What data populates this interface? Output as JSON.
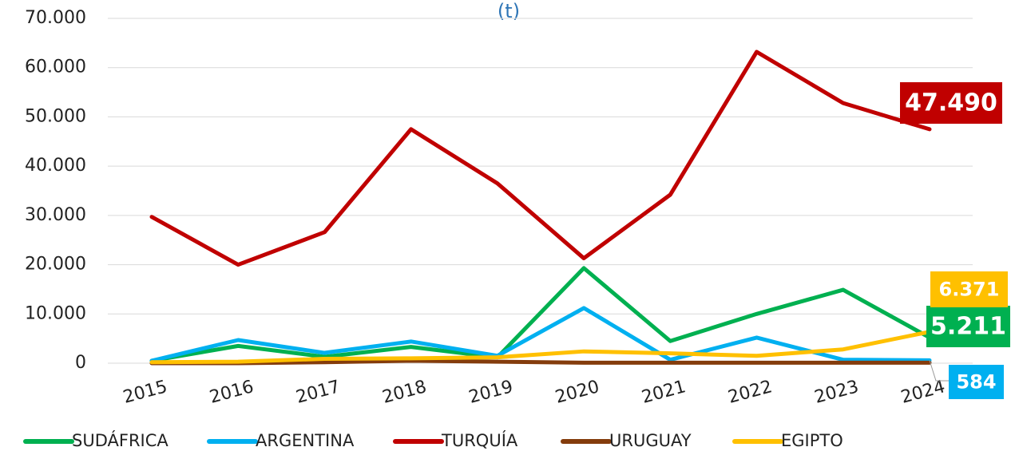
{
  "chart_data": {
    "type": "line",
    "title": "(t)",
    "categories": [
      "2015",
      "2016",
      "2017",
      "2018",
      "2019",
      "2020",
      "2021",
      "2022",
      "2023",
      "2024"
    ],
    "series": [
      {
        "name": "SUDÁFRICA",
        "color": "#00b050",
        "values": [
          500,
          3500,
          1300,
          3300,
          1200,
          19300,
          4500,
          10000,
          14900,
          5211
        ],
        "value_labels": [
          null,
          null,
          null,
          null,
          null,
          null,
          null,
          null,
          null,
          "5.211"
        ]
      },
      {
        "name": "ARGENTINA",
        "color": "#00b0f0",
        "values": [
          500,
          4700,
          2100,
          4400,
          1500,
          11200,
          700,
          5200,
          700,
          584
        ],
        "value_labels": [
          null,
          null,
          null,
          null,
          null,
          null,
          null,
          null,
          null,
          "584"
        ]
      },
      {
        "name": "TURQUÍA",
        "color": "#c00000",
        "values": [
          29700,
          20000,
          26600,
          47500,
          36500,
          21300,
          34200,
          63200,
          52800,
          47490
        ],
        "value_labels": [
          null,
          null,
          null,
          null,
          null,
          null,
          null,
          null,
          null,
          "47.490"
        ]
      },
      {
        "name": "URUGUAY",
        "color": "#843c0c",
        "values": [
          0,
          0,
          200,
          500,
          300,
          100,
          100,
          100,
          100,
          100
        ]
      },
      {
        "name": "EGIPTO",
        "color": "#ffc000",
        "values": [
          200,
          300,
          900,
          1000,
          1200,
          2400,
          2000,
          1500,
          2800,
          6371
        ],
        "value_labels": [
          null,
          null,
          null,
          null,
          null,
          null,
          null,
          null,
          null,
          "6.371"
        ]
      }
    ],
    "ylim": [
      0,
      70000
    ],
    "yticks": [
      {
        "value": 0,
        "label": "0"
      },
      {
        "value": 10000,
        "label": "10.000"
      },
      {
        "value": 20000,
        "label": "20.000"
      },
      {
        "value": 30000,
        "label": "30.000"
      },
      {
        "value": 40000,
        "label": "40.000"
      },
      {
        "value": 50000,
        "label": "50.000"
      },
      {
        "value": 60000,
        "label": "60.000"
      },
      {
        "value": 70000,
        "label": "70.000"
      }
    ],
    "grid": true,
    "legend": "bottom"
  }
}
